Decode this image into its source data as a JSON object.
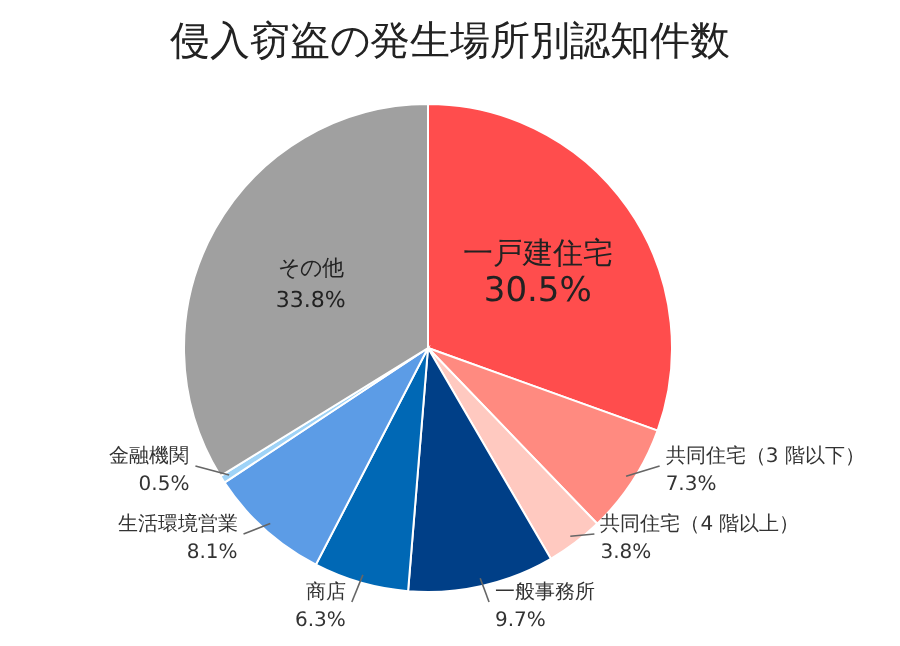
{
  "chart_data": {
    "type": "pie",
    "title": "侵入窃盗の発生場所別認知件数",
    "categories": [
      "一戸建住宅",
      "共同住宅（3 階以下）",
      "共同住宅（4 階以上）",
      "一般事務所",
      "商店",
      "生活環境営業",
      "金融機関",
      "その他"
    ],
    "values": [
      30.5,
      7.3,
      3.8,
      9.7,
      6.3,
      8.1,
      0.5,
      33.8
    ],
    "value_labels": [
      "30.5%",
      "7.3%",
      "3.8%",
      "9.7%",
      "6.3%",
      "8.1%",
      "0.5%",
      "33.8%"
    ],
    "colors": [
      "#ff4d4d",
      "#ff8a80",
      "#ffc9c0",
      "#003f87",
      "#0068b5",
      "#5c9ce6",
      "#9fd3f7",
      "#a0a0a0"
    ]
  }
}
